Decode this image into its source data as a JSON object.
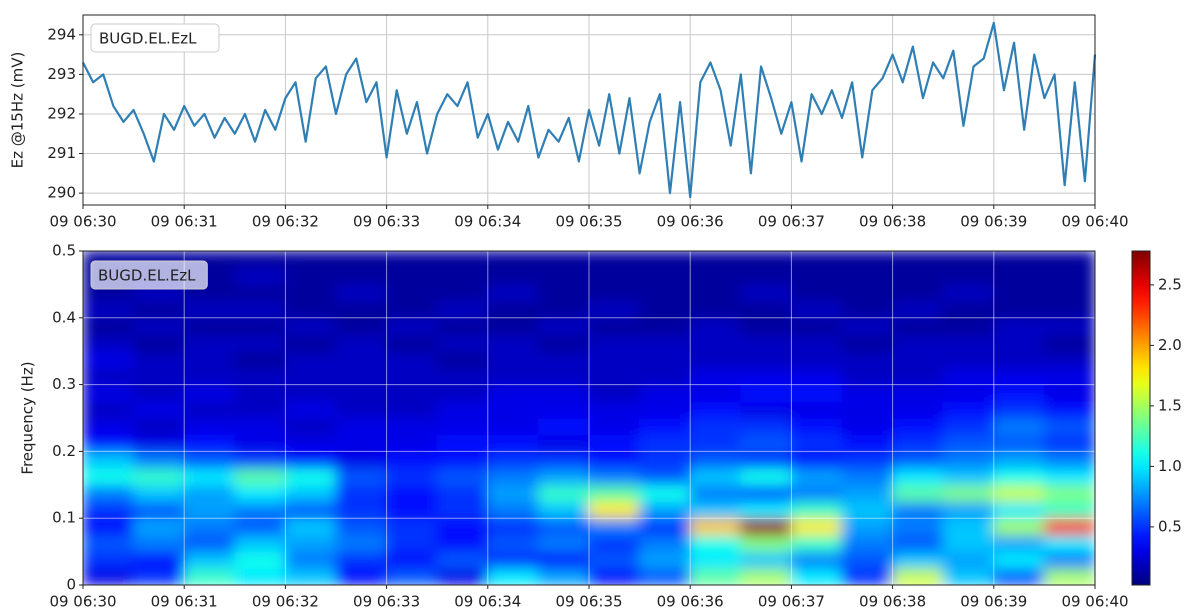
{
  "chart_data": [
    {
      "type": "line",
      "ylabel": "Ez @15Hz (mV)",
      "x": [
        0,
        0.1,
        0.2,
        0.3,
        0.4,
        0.5,
        0.6,
        0.7,
        0.8,
        0.9,
        1,
        1.1,
        1.2,
        1.3,
        1.4,
        1.5,
        1.6,
        1.7,
        1.8,
        1.9,
        2,
        2.1,
        2.2,
        2.3,
        2.4,
        2.5,
        2.6,
        2.7,
        2.8,
        2.9,
        3,
        3.1,
        3.2,
        3.3,
        3.4,
        3.5,
        3.6,
        3.7,
        3.8,
        3.9,
        4,
        4.1,
        4.2,
        4.3,
        4.4,
        4.5,
        4.6,
        4.7,
        4.8,
        4.9,
        5,
        5.1,
        5.2,
        5.3,
        5.4,
        5.5,
        5.6,
        5.7,
        5.8,
        5.9,
        6,
        6.1,
        6.2,
        6.3,
        6.4,
        6.5,
        6.6,
        6.7,
        6.8,
        6.9,
        7,
        7.1,
        7.2,
        7.3,
        7.4,
        7.5,
        7.6,
        7.7,
        7.8,
        7.9,
        8,
        8.1,
        8.2,
        8.3,
        8.4,
        8.5,
        8.6,
        8.7,
        8.8,
        8.9,
        9,
        9.1,
        9.2,
        9.3,
        9.4,
        9.5,
        9.6,
        9.7,
        9.8,
        9.9,
        10
      ],
      "xlim": [
        0,
        10
      ],
      "xticks": [
        {
          "value": 0,
          "label": "09 06:30"
        },
        {
          "value": 1,
          "label": "09 06:31"
        },
        {
          "value": 2,
          "label": "09 06:32"
        },
        {
          "value": 3,
          "label": "09 06:33"
        },
        {
          "value": 4,
          "label": "09 06:34"
        },
        {
          "value": 5,
          "label": "09 06:35"
        },
        {
          "value": 6,
          "label": "09 06:36"
        },
        {
          "value": 7,
          "label": "09 06:37"
        },
        {
          "value": 8,
          "label": "09 06:38"
        },
        {
          "value": 9,
          "label": "09 06:39"
        },
        {
          "value": 10,
          "label": "09 06:40"
        }
      ],
      "ylim": [
        289.7,
        294.5
      ],
      "yticks": [
        290,
        291,
        292,
        293,
        294
      ],
      "grid": true,
      "legend": "upper left",
      "series": [
        {
          "name": "BUGD.EL.EzL",
          "color": "#2f7fb5",
          "values": [
            293.3,
            292.8,
            293.0,
            292.2,
            291.8,
            292.1,
            291.5,
            290.8,
            292.0,
            291.6,
            292.2,
            291.7,
            292.0,
            291.4,
            291.9,
            291.5,
            292.0,
            291.3,
            292.1,
            291.6,
            292.4,
            292.8,
            291.3,
            292.9,
            293.2,
            292.0,
            293.0,
            293.4,
            292.3,
            292.8,
            290.9,
            292.6,
            291.5,
            292.3,
            291.0,
            292.0,
            292.5,
            292.2,
            292.8,
            291.4,
            292.0,
            291.1,
            291.8,
            291.3,
            292.2,
            290.9,
            291.6,
            291.3,
            291.9,
            290.8,
            292.1,
            291.2,
            292.5,
            291.0,
            292.4,
            290.5,
            291.8,
            292.5,
            290.0,
            292.3,
            289.9,
            292.8,
            293.3,
            292.6,
            291.2,
            293.0,
            290.5,
            293.2,
            292.4,
            291.5,
            292.3,
            290.8,
            292.5,
            292.0,
            292.6,
            291.9,
            292.8,
            290.9,
            292.6,
            292.9,
            293.5,
            292.8,
            293.7,
            292.4,
            293.3,
            292.9,
            293.6,
            291.7,
            293.2,
            293.4,
            294.3,
            292.6,
            293.8,
            291.6,
            293.5,
            292.4,
            293.0,
            290.2,
            292.8,
            290.3,
            293.5
          ]
        }
      ]
    },
    {
      "type": "heatmap",
      "ylabel": "Frequency (Hz)",
      "annotation": "BUGD.EL.EzL",
      "xlim": [
        0,
        10
      ],
      "xticks": [
        {
          "value": 0,
          "label": "09 06:30"
        },
        {
          "value": 1,
          "label": "09 06:31"
        },
        {
          "value": 2,
          "label": "09 06:32"
        },
        {
          "value": 3,
          "label": "09 06:33"
        },
        {
          "value": 4,
          "label": "09 06:34"
        },
        {
          "value": 5,
          "label": "09 06:35"
        },
        {
          "value": 6,
          "label": "09 06:36"
        },
        {
          "value": 7,
          "label": "09 06:37"
        },
        {
          "value": 8,
          "label": "09 06:38"
        },
        {
          "value": 9,
          "label": "09 06:39"
        },
        {
          "value": 10,
          "label": "09 06:40"
        }
      ],
      "ylim": [
        0,
        0.5
      ],
      "yticks": [
        0,
        0.1,
        0.2,
        0.3,
        0.4,
        0.5
      ],
      "grid": true,
      "colormap": "jet",
      "zlim": [
        0.02,
        2.78
      ],
      "zticks": [
        0.5,
        {
          "value": 1,
          "label": "1.0"
        },
        1.5,
        {
          "value": 2,
          "label": "2.0"
        },
        2.5
      ],
      "z": [
        [
          0.3,
          0.5,
          1.2,
          1.0,
          0.9,
          0.4,
          0.6,
          0.3,
          1.0,
          0.8,
          0.4,
          0.6,
          1.3,
          1.5,
          1.0,
          0.5,
          1.6,
          0.9,
          0.6,
          1.5
        ],
        [
          0.5,
          0.4,
          0.9,
          1.1,
          0.7,
          0.5,
          0.4,
          0.6,
          0.5,
          0.4,
          0.6,
          0.8,
          1.0,
          0.9,
          0.7,
          0.6,
          0.9,
          0.8,
          1.0,
          0.7
        ],
        [
          0.6,
          0.7,
          0.6,
          0.9,
          0.8,
          0.7,
          0.5,
          0.4,
          0.6,
          0.7,
          0.5,
          0.7,
          1.1,
          1.4,
          1.2,
          0.7,
          0.6,
          0.9,
          0.8,
          1.0
        ],
        [
          0.4,
          0.8,
          0.7,
          0.6,
          0.9,
          0.6,
          0.5,
          0.4,
          0.5,
          0.6,
          0.7,
          0.5,
          1.9,
          2.7,
          1.8,
          0.8,
          0.7,
          0.9,
          1.5,
          2.3
        ],
        [
          0.5,
          0.6,
          0.8,
          0.7,
          0.6,
          0.5,
          0.4,
          0.5,
          0.7,
          0.9,
          1.8,
          0.8,
          0.9,
          1.0,
          1.2,
          0.9,
          0.7,
          0.8,
          1.0,
          1.2
        ],
        [
          0.7,
          0.9,
          0.8,
          1.0,
          0.9,
          0.5,
          0.4,
          0.5,
          0.8,
          1.2,
          1.3,
          1.1,
          0.7,
          0.6,
          0.7,
          0.8,
          1.3,
          1.4,
          1.6,
          1.4
        ],
        [
          1.1,
          1.2,
          1.0,
          1.3,
          1.1,
          0.6,
          0.5,
          0.6,
          0.7,
          0.8,
          0.7,
          0.6,
          0.9,
          1.1,
          0.8,
          0.7,
          1.0,
          0.9,
          1.1,
          1.0
        ],
        [
          0.9,
          0.7,
          0.6,
          0.5,
          0.4,
          0.3,
          0.4,
          0.4,
          0.5,
          0.5,
          0.4,
          0.5,
          0.6,
          0.5,
          0.4,
          0.5,
          0.6,
          0.7,
          0.8,
          0.7
        ],
        [
          0.4,
          0.3,
          0.4,
          0.3,
          0.3,
          0.3,
          0.3,
          0.4,
          0.4,
          0.3,
          0.4,
          0.5,
          0.5,
          0.6,
          0.5,
          0.4,
          0.5,
          0.6,
          0.6,
          0.5
        ],
        [
          0.3,
          0.2,
          0.3,
          0.3,
          0.2,
          0.3,
          0.3,
          0.3,
          0.3,
          0.4,
          0.3,
          0.4,
          0.5,
          0.5,
          0.4,
          0.3,
          0.4,
          0.5,
          0.7,
          0.6
        ],
        [
          0.2,
          0.3,
          0.2,
          0.2,
          0.3,
          0.2,
          0.2,
          0.3,
          0.3,
          0.3,
          0.3,
          0.3,
          0.4,
          0.3,
          0.3,
          0.3,
          0.3,
          0.4,
          0.5,
          0.4
        ],
        [
          0.3,
          0.2,
          0.3,
          0.2,
          0.2,
          0.2,
          0.2,
          0.2,
          0.3,
          0.3,
          0.2,
          0.3,
          0.3,
          0.4,
          0.4,
          0.3,
          0.3,
          0.3,
          0.4,
          0.3
        ],
        [
          0.2,
          0.2,
          0.2,
          0.2,
          0.2,
          0.2,
          0.2,
          0.2,
          0.2,
          0.2,
          0.2,
          0.2,
          0.3,
          0.3,
          0.3,
          0.2,
          0.2,
          0.3,
          0.3,
          0.3
        ],
        [
          0.3,
          0.2,
          0.2,
          0.1,
          0.2,
          0.2,
          0.2,
          0.1,
          0.2,
          0.2,
          0.2,
          0.2,
          0.2,
          0.2,
          0.2,
          0.2,
          0.2,
          0.2,
          0.2,
          0.2
        ],
        [
          0.2,
          0.1,
          0.2,
          0.2,
          0.1,
          0.2,
          0.1,
          0.2,
          0.2,
          0.1,
          0.2,
          0.2,
          0.2,
          0.2,
          0.2,
          0.1,
          0.2,
          0.2,
          0.2,
          0.1
        ],
        [
          0.1,
          0.2,
          0.1,
          0.1,
          0.2,
          0.1,
          0.2,
          0.1,
          0.1,
          0.2,
          0.1,
          0.1,
          0.2,
          0.1,
          0.1,
          0.2,
          0.1,
          0.1,
          0.2,
          0.2
        ],
        [
          0.2,
          0.1,
          0.2,
          0.2,
          0.1,
          0.1,
          0.1,
          0.2,
          0.1,
          0.1,
          0.2,
          0.1,
          0.1,
          0.1,
          0.2,
          0.1,
          0.2,
          0.1,
          0.1,
          0.1
        ],
        [
          0.1,
          0.2,
          0.1,
          0.1,
          0.1,
          0.2,
          0.1,
          0.1,
          0.2,
          0.1,
          0.1,
          0.1,
          0.1,
          0.2,
          0.1,
          0.1,
          0.1,
          0.2,
          0.1,
          0.1
        ],
        [
          0.1,
          0.1,
          0.1,
          0.2,
          0.1,
          0.1,
          0.1,
          0.1,
          0.1,
          0.1,
          0.1,
          0.1,
          0.1,
          0.1,
          0.1,
          0.1,
          0.1,
          0.1,
          0.1,
          0.1
        ],
        [
          0.1,
          0.1,
          0.1,
          0.1,
          0.1,
          0.1,
          0.1,
          0.1,
          0.1,
          0.1,
          0.1,
          0.1,
          0.1,
          0.1,
          0.1,
          0.1,
          0.1,
          0.1,
          0.1,
          0.1
        ]
      ]
    }
  ]
}
